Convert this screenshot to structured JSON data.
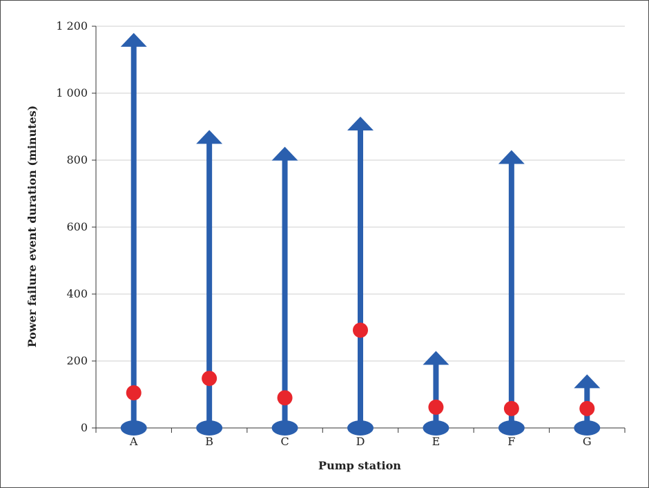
{
  "chart_data": {
    "type": "bar",
    "title": "",
    "xlabel": "Pump station",
    "ylabel": "Power failure event duration (minutes)",
    "ylim": [
      0,
      1200
    ],
    "yticks": [
      0,
      200,
      400,
      600,
      800,
      1000,
      1200
    ],
    "ytick_labels": [
      "0",
      "200",
      "400",
      "600",
      "800",
      "1 000",
      "1 200"
    ],
    "grid": true,
    "categories": [
      "A",
      "B",
      "C",
      "D",
      "E",
      "F",
      "G"
    ],
    "series": [
      {
        "values": [
          1180,
          890,
          840,
          930,
          230,
          830,
          160
        ]
      },
      {
        "values": [
          105,
          148,
          90,
          292,
          62,
          58,
          58
        ]
      }
    ],
    "colors": {
      "range": "#2a5fae",
      "point": "#e8262c",
      "grid": "#cfcfcf",
      "axis": "#333333"
    }
  }
}
